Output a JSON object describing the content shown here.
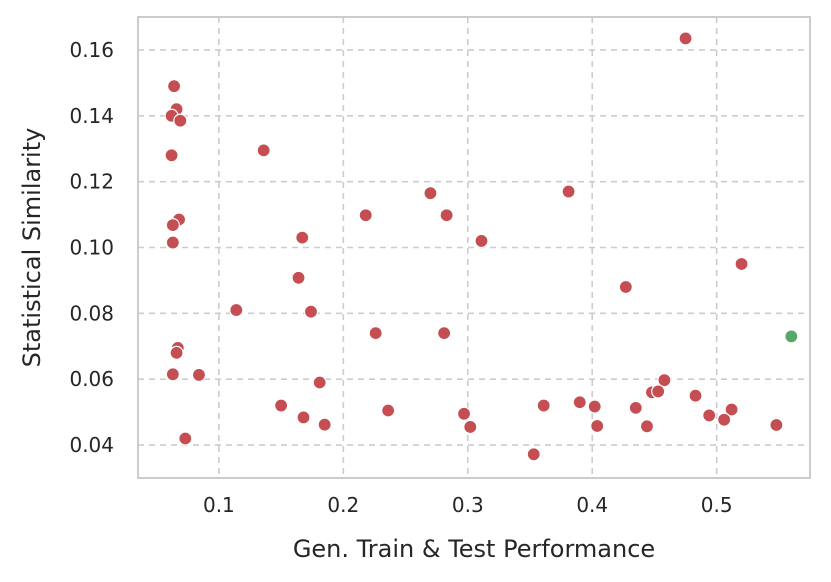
{
  "chart_data": {
    "type": "scatter",
    "title": "",
    "xlabel": "Gen. Train & Test Performance",
    "ylabel": "Statistical Similarity",
    "xlim": [
      0.035,
      0.575
    ],
    "ylim": [
      0.03,
      0.17
    ],
    "xticks": [
      "0.1",
      "0.2",
      "0.3",
      "0.4",
      "0.5"
    ],
    "yticks": [
      "0.04",
      "0.06",
      "0.08",
      "0.10",
      "0.12",
      "0.14",
      "0.16"
    ],
    "grid": true,
    "colors": {
      "series_main": "#c44e52",
      "series_highlight": "#55a868",
      "grid": "#cccccc",
      "frame": "#cccccc"
    },
    "series": [
      {
        "color": "#c44e52",
        "points": [
          [
            0.475,
            0.1635
          ],
          [
            0.064,
            0.149
          ],
          [
            0.066,
            0.142
          ],
          [
            0.062,
            0.14
          ],
          [
            0.069,
            0.1385
          ],
          [
            0.136,
            0.1295
          ],
          [
            0.062,
            0.128
          ],
          [
            0.27,
            0.1165
          ],
          [
            0.381,
            0.117
          ],
          [
            0.218,
            0.1098
          ],
          [
            0.283,
            0.1098
          ],
          [
            0.068,
            0.1085
          ],
          [
            0.063,
            0.1068
          ],
          [
            0.167,
            0.103
          ],
          [
            0.311,
            0.102
          ],
          [
            0.063,
            0.1015
          ],
          [
            0.52,
            0.095
          ],
          [
            0.164,
            0.0908
          ],
          [
            0.427,
            0.088
          ],
          [
            0.114,
            0.081
          ],
          [
            0.174,
            0.0805
          ],
          [
            0.226,
            0.074
          ],
          [
            0.281,
            0.074
          ],
          [
            0.067,
            0.0695
          ],
          [
            0.066,
            0.068
          ],
          [
            0.063,
            0.0615
          ],
          [
            0.084,
            0.0613
          ],
          [
            0.181,
            0.059
          ],
          [
            0.458,
            0.0597
          ],
          [
            0.448,
            0.056
          ],
          [
            0.453,
            0.0563
          ],
          [
            0.483,
            0.055
          ],
          [
            0.39,
            0.053
          ],
          [
            0.15,
            0.052
          ],
          [
            0.361,
            0.052
          ],
          [
            0.402,
            0.0517
          ],
          [
            0.435,
            0.0513
          ],
          [
            0.512,
            0.0508
          ],
          [
            0.236,
            0.0505
          ],
          [
            0.297,
            0.0495
          ],
          [
            0.494,
            0.049
          ],
          [
            0.168,
            0.0484
          ],
          [
            0.506,
            0.0477
          ],
          [
            0.185,
            0.0462
          ],
          [
            0.302,
            0.0455
          ],
          [
            0.404,
            0.0458
          ],
          [
            0.444,
            0.0457
          ],
          [
            0.548,
            0.0461
          ],
          [
            0.073,
            0.042
          ],
          [
            0.353,
            0.0372
          ]
        ]
      },
      {
        "color": "#55a868",
        "points": [
          [
            0.56,
            0.073
          ]
        ]
      }
    ]
  }
}
